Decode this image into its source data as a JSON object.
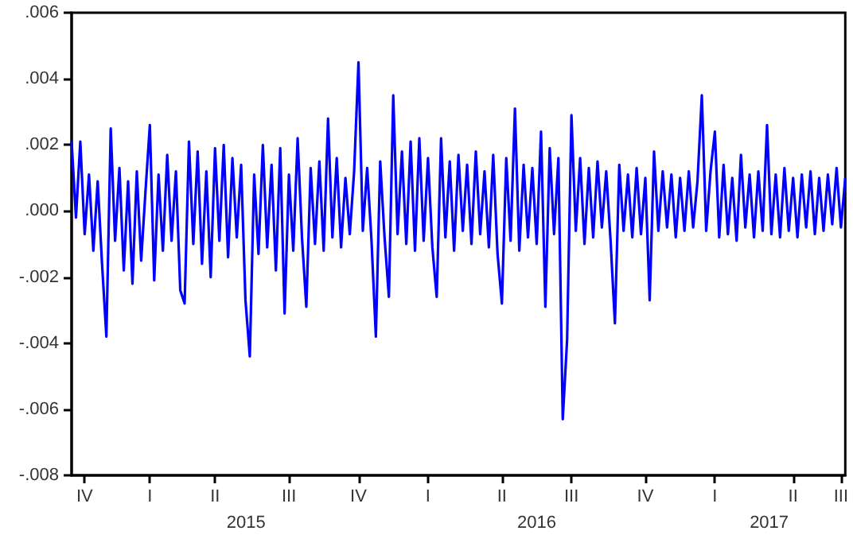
{
  "chart_data": {
    "type": "line",
    "categories": [
      null,
      null,
      null,
      "IV",
      null,
      null,
      null,
      null,
      null,
      null,
      null,
      null,
      null,
      null,
      null,
      null,
      null,
      null,
      "I",
      null,
      null,
      null,
      null,
      null,
      null,
      null,
      null,
      null,
      null,
      null,
      null,
      null,
      null,
      "II",
      null,
      null,
      null,
      null,
      null,
      null,
      null,
      null,
      null,
      null,
      null,
      null,
      null,
      null,
      null,
      null,
      "III",
      null,
      null,
      null,
      null,
      null,
      null,
      null,
      null,
      null,
      null,
      null,
      null,
      null,
      null,
      null,
      "IV",
      null,
      null,
      null,
      null,
      null,
      null,
      null,
      null,
      null,
      null,
      null,
      null,
      null,
      null,
      null,
      "I",
      null,
      null,
      null,
      null,
      null,
      null,
      null,
      null,
      null,
      null,
      null,
      null,
      null,
      null,
      null,
      null,
      "II",
      null,
      null,
      null,
      null,
      null,
      null,
      null,
      null,
      null,
      null,
      null,
      null,
      null,
      null,
      null,
      "III",
      null,
      null,
      null,
      null,
      null,
      null,
      null,
      null,
      null,
      null,
      null,
      null,
      null,
      null,
      null,
      null,
      "IV",
      null,
      null,
      null,
      null,
      null,
      null,
      null,
      null,
      null,
      null,
      null,
      null,
      null,
      null,
      null,
      "I",
      null,
      null,
      null,
      null,
      null,
      null,
      null,
      null,
      null,
      null,
      null,
      null,
      null,
      null,
      null,
      null,
      null,
      "II",
      null,
      null,
      null,
      null,
      null,
      null,
      null,
      null,
      null,
      null,
      "III",
      null
    ],
    "series": [
      {
        "color": "#0000ff",
        "values": [
          0.0021,
          -0.0002,
          0.0021,
          -0.0007,
          0.0011,
          -0.0012,
          0.0009,
          -0.0016,
          -0.0038,
          0.0025,
          -0.0009,
          0.0013,
          -0.0018,
          0.0009,
          -0.0022,
          0.0012,
          -0.0015,
          0.0006,
          0.0026,
          -0.0021,
          0.0011,
          -0.0012,
          0.0017,
          -0.0009,
          0.0012,
          -0.0024,
          -0.0028,
          0.0021,
          -0.001,
          0.0018,
          -0.0016,
          0.0012,
          -0.002,
          0.0019,
          -0.0009,
          0.002,
          -0.0014,
          0.0016,
          -0.0008,
          0.0014,
          -0.0027,
          -0.0044,
          0.0011,
          -0.0013,
          0.002,
          -0.0011,
          0.0014,
          -0.0018,
          0.0019,
          -0.0031,
          0.0011,
          -0.0012,
          0.0022,
          -0.0008,
          -0.0029,
          0.0013,
          -0.001,
          0.0015,
          -0.0012,
          0.0028,
          -0.0008,
          0.0016,
          -0.0011,
          0.001,
          -0.0007,
          0.0012,
          0.0045,
          -0.0006,
          0.0013,
          -0.0009,
          -0.0038,
          0.0015,
          -0.0008,
          -0.0026,
          0.0035,
          -0.0007,
          0.0018,
          -0.001,
          0.0021,
          -0.0012,
          0.0022,
          -0.0009,
          0.0016,
          -0.0011,
          -0.0026,
          0.0022,
          -0.0008,
          0.0015,
          -0.0012,
          0.0017,
          -0.0006,
          0.0014,
          -0.001,
          0.0018,
          -0.0007,
          0.0012,
          -0.0011,
          0.0017,
          -0.0013,
          -0.0028,
          0.0016,
          -0.0009,
          0.0031,
          -0.0012,
          0.0014,
          -0.0008,
          0.0013,
          -0.001,
          0.0024,
          -0.0029,
          0.0019,
          -0.0007,
          0.0016,
          -0.0063,
          -0.0039,
          0.0029,
          -0.0006,
          0.0016,
          -0.001,
          0.0013,
          -0.0008,
          0.0015,
          -0.0005,
          0.0012,
          -0.0009,
          -0.0034,
          0.0014,
          -0.0006,
          0.0011,
          -0.0008,
          0.0013,
          -0.0007,
          0.001,
          -0.0027,
          0.0018,
          -0.0006,
          0.0012,
          -0.0005,
          0.0011,
          -0.0008,
          0.001,
          -0.0006,
          0.0012,
          -0.0005,
          0.0009,
          0.0035,
          -0.0006,
          0.0012,
          0.0024,
          -0.0008,
          0.0014,
          -0.0007,
          0.001,
          -0.0009,
          0.0017,
          -0.0005,
          0.0011,
          -0.0008,
          0.0012,
          -0.0006,
          0.0026,
          -0.0007,
          0.0011,
          -0.0008,
          0.0013,
          -0.0006,
          0.001,
          -0.0008,
          0.0011,
          -0.0005,
          0.0012,
          -0.0007,
          0.001,
          -0.0006,
          0.0011,
          -0.0004,
          0.0013,
          -0.0005,
          0.001
        ]
      }
    ],
    "ylim": [
      -0.008,
      0.006
    ],
    "yticks": [
      {
        "value": -0.008,
        "label": "-.008"
      },
      {
        "value": -0.006,
        "label": "-.006"
      },
      {
        "value": -0.004,
        "label": "-.004"
      },
      {
        "value": -0.002,
        "label": "-.002"
      },
      {
        "value": 0,
        "label": ".000"
      },
      {
        "value": 0.002,
        "label": ".002"
      },
      {
        "value": 0.004,
        "label": ".004"
      },
      {
        "value": 0.006,
        "label": ".006"
      }
    ],
    "annotations": [
      "2015",
      "2016",
      "2017"
    ],
    "grid": false,
    "marker": "none",
    "line_style": "solid"
  }
}
